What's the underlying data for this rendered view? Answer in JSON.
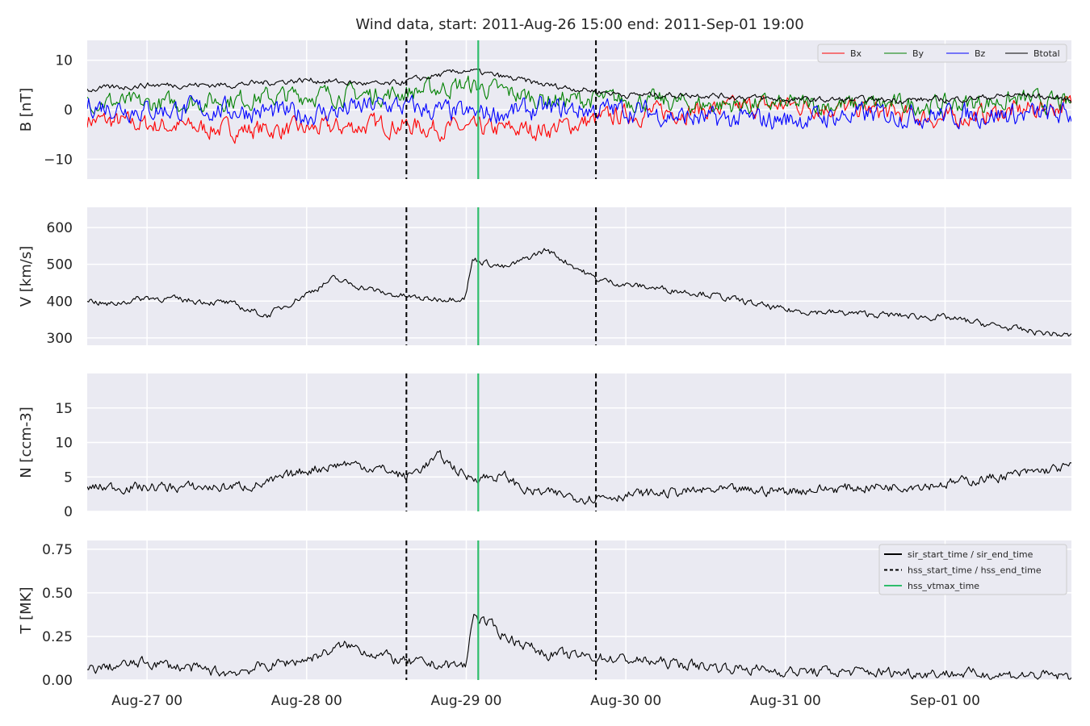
{
  "chart_data": {
    "type": "line",
    "title": "Wind data, start: 2011-Aug-26 15:00  end: 2011-Sep-01 19:00",
    "x_range": [
      "2011-08-26 15:00",
      "2011-09-01 19:00"
    ],
    "x_ticks": [
      {
        "t": "2011-08-27 00:00",
        "label": "Aug-27 00"
      },
      {
        "t": "2011-08-28 00:00",
        "label": "Aug-28 00"
      },
      {
        "t": "2011-08-29 00:00",
        "label": "Aug-29 00"
      },
      {
        "t": "2011-08-30 00:00",
        "label": "Aug-30 00"
      },
      {
        "t": "2011-08-31 00:00",
        "label": "Aug-31 00"
      },
      {
        "t": "2011-09-01 00:00",
        "label": "Sep-01 00"
      }
    ],
    "grid": true,
    "event_markers": [
      {
        "t": "2011-08-28 15:00",
        "style": "dashed",
        "color": "#000000"
      },
      {
        "t": "2011-08-29 01:48",
        "style": "solid",
        "color": "#2ebd6b"
      },
      {
        "t": "2011-08-29 19:30",
        "style": "dashed",
        "color": "#000000"
      }
    ],
    "panels": [
      {
        "id": "B",
        "ylabel": "B [nT]",
        "ylim": [
          -14,
          14
        ],
        "yticks": [
          {
            "v": 10,
            "label": "10"
          },
          {
            "v": 0,
            "label": "0"
          },
          {
            "v": -10,
            "label": "−10"
          }
        ],
        "legend": "top-right",
        "series": [
          {
            "name": "Bx",
            "color": "#ff0000",
            "t": [
              "2011-08-26 15:00",
              "2011-08-27 00:00",
              "2011-08-27 12:00",
              "2011-08-28 00:00",
              "2011-08-28 12:00",
              "2011-08-29 00:00",
              "2011-08-29 12:00",
              "2011-08-30 00:00",
              "2011-08-30 12:00",
              "2011-08-31 00:00",
              "2011-08-31 12:00",
              "2011-09-01 00:00",
              "2011-09-01 12:00",
              "2011-09-01 19:00"
            ],
            "values": [
              -2,
              -3,
              -4,
              -4,
              -3,
              -4,
              -4,
              -1,
              0,
              1,
              0,
              -2,
              0,
              1
            ]
          },
          {
            "name": "By",
            "color": "#008000",
            "t": [
              "2011-08-26 15:00",
              "2011-08-27 00:00",
              "2011-08-27 12:00",
              "2011-08-28 00:00",
              "2011-08-28 12:00",
              "2011-08-29 00:00",
              "2011-08-29 12:00",
              "2011-08-30 00:00",
              "2011-08-30 12:00",
              "2011-08-31 00:00",
              "2011-08-31 12:00",
              "2011-09-01 00:00",
              "2011-09-01 12:00",
              "2011-09-01 19:00"
            ],
            "values": [
              2,
              1,
              2,
              3,
              3,
              5,
              2,
              2,
              1,
              1,
              1,
              1,
              2,
              1
            ]
          },
          {
            "name": "Bz",
            "color": "#0000ff",
            "t": [
              "2011-08-26 15:00",
              "2011-08-27 00:00",
              "2011-08-27 12:00",
              "2011-08-28 00:00",
              "2011-08-28 12:00",
              "2011-08-29 00:00",
              "2011-08-29 12:00",
              "2011-08-30 00:00",
              "2011-08-30 12:00",
              "2011-08-31 00:00",
              "2011-08-31 12:00",
              "2011-09-01 00:00",
              "2011-09-01 12:00",
              "2011-09-01 19:00"
            ],
            "values": [
              1,
              0,
              0,
              -1,
              1,
              -1,
              0,
              0,
              -2,
              -2,
              -1,
              -1,
              -1,
              -1
            ]
          },
          {
            "name": "Btotal",
            "color": "#000000",
            "t": [
              "2011-08-26 15:00",
              "2011-08-27 00:00",
              "2011-08-27 12:00",
              "2011-08-28 00:00",
              "2011-08-28 12:00",
              "2011-08-29 00:00",
              "2011-08-29 12:00",
              "2011-08-30 00:00",
              "2011-08-30 12:00",
              "2011-08-31 00:00",
              "2011-08-31 12:00",
              "2011-09-01 00:00",
              "2011-09-01 12:00",
              "2011-09-01 19:00"
            ],
            "values": [
              4,
              5,
              5,
              6,
              5,
              8,
              5,
              3,
              3,
              2,
              2,
              2,
              3,
              2
            ]
          }
        ]
      },
      {
        "id": "V",
        "ylabel": "V [km/s]",
        "ylim": [
          280,
          655
        ],
        "yticks": [
          {
            "v": 600,
            "label": "600"
          },
          {
            "v": 500,
            "label": "500"
          },
          {
            "v": 400,
            "label": "400"
          },
          {
            "v": 300,
            "label": "300"
          }
        ],
        "series": [
          {
            "name": "V",
            "color": "#000000",
            "t": [
              "2011-08-26 15:00",
              "2011-08-26 18:00",
              "2011-08-27 00:00",
              "2011-08-27 12:00",
              "2011-08-27 18:00",
              "2011-08-28 00:00",
              "2011-08-28 04:00",
              "2011-08-28 12:00",
              "2011-08-28 18:00",
              "2011-08-28 23:50",
              "2011-08-29 01:00",
              "2011-08-29 06:00",
              "2011-08-29 12:00",
              "2011-08-29 19:30",
              "2011-08-30 00:00",
              "2011-08-30 12:00",
              "2011-08-31 00:00",
              "2011-08-31 12:00",
              "2011-09-01 00:00",
              "2011-09-01 12:00",
              "2011-09-01 19:00"
            ],
            "values": [
              405,
              390,
              410,
              395,
              360,
              420,
              460,
              420,
              405,
              410,
              515,
              490,
              540,
              460,
              445,
              420,
              375,
              365,
              355,
              320,
              305
            ]
          }
        ]
      },
      {
        "id": "N",
        "ylabel": "N [ccm-3]",
        "ylim": [
          0,
          20
        ],
        "yticks": [
          {
            "v": 15,
            "label": "15"
          },
          {
            "v": 10,
            "label": "10"
          },
          {
            "v": 5,
            "label": "5"
          },
          {
            "v": 0,
            "label": "0"
          }
        ],
        "series": [
          {
            "name": "N",
            "color": "#000000",
            "t": [
              "2011-08-26 15:00",
              "2011-08-27 00:00",
              "2011-08-27 12:00",
              "2011-08-27 18:00",
              "2011-08-28 00:00",
              "2011-08-28 06:00",
              "2011-08-28 12:00",
              "2011-08-28 15:00",
              "2011-08-28 20:00",
              "2011-08-29 00:00",
              "2011-08-29 06:00",
              "2011-08-29 09:00",
              "2011-08-29 18:00",
              "2011-08-30 02:00",
              "2011-08-30 12:00",
              "2011-08-31 00:00",
              "2011-08-31 12:00",
              "2011-09-01 00:00",
              "2011-09-01 12:00",
              "2011-09-01 19:00"
            ],
            "values": [
              3.5,
              3.5,
              3.5,
              4,
              6,
              7,
              6,
              5,
              8,
              5,
              5,
              3,
              2,
              2.5,
              3,
              3,
              3.5,
              4,
              5.5,
              6.5
            ]
          }
        ]
      },
      {
        "id": "T",
        "ylabel": "T [MK]",
        "ylim": [
          0,
          0.8
        ],
        "yticks": [
          {
            "v": 0.75,
            "label": "0.75"
          },
          {
            "v": 0.5,
            "label": "0.50"
          },
          {
            "v": 0.25,
            "label": "0.25"
          },
          {
            "v": 0,
            "label": "0.00"
          }
        ],
        "legend": "top-right",
        "legend_entries": [
          {
            "label": "sir_start_time / sir_end_time",
            "style": "solid",
            "color": "#000000"
          },
          {
            "label": "hss_start_time / hss_end_time",
            "style": "dashed",
            "color": "#000000"
          },
          {
            "label": "hss_vtmax_time",
            "style": "solid",
            "color": "#2ebd6b"
          }
        ],
        "series": [
          {
            "name": "T",
            "color": "#000000",
            "t": [
              "2011-08-26 15:00",
              "2011-08-27 00:00",
              "2011-08-27 12:00",
              "2011-08-28 00:00",
              "2011-08-28 06:00",
              "2011-08-28 15:00",
              "2011-08-29 00:00",
              "2011-08-29 01:00",
              "2011-08-29 06:00",
              "2011-08-29 12:00",
              "2011-08-29 20:00",
              "2011-08-30 12:00",
              "2011-08-31 00:00",
              "2011-09-01 00:00",
              "2011-09-01 19:00"
            ],
            "values": [
              0.06,
              0.1,
              0.04,
              0.12,
              0.2,
              0.1,
              0.08,
              0.38,
              0.25,
              0.15,
              0.13,
              0.08,
              0.05,
              0.04,
              0.02
            ]
          }
        ]
      }
    ]
  }
}
